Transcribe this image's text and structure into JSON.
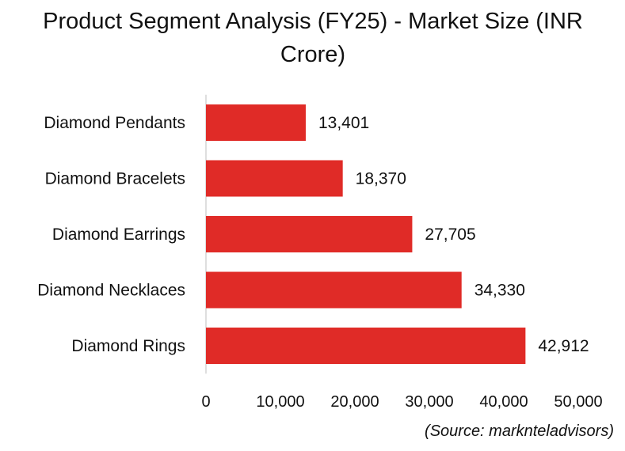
{
  "chart_data": {
    "type": "bar",
    "orientation": "horizontal",
    "title": "Product Segment Analysis (FY25) - Market Size (INR Crore)",
    "categories": [
      "Diamond Pendants",
      "Diamond Bracelets",
      "Diamond Earrings",
      "Diamond Necklaces",
      "Diamond Rings"
    ],
    "values": [
      13401,
      18370,
      27705,
      34330,
      42912
    ],
    "value_labels": [
      "13,401",
      "18,370",
      "27,705",
      "34,330",
      "42,912"
    ],
    "xlim": [
      0,
      50000
    ],
    "xticks": [
      0,
      10000,
      20000,
      30000,
      40000,
      50000
    ],
    "xtick_labels": [
      "0",
      "10,000",
      "20,000",
      "30,000",
      "40,000",
      "50,000"
    ],
    "bar_color": "#E02B27",
    "grid": false,
    "legend": "none"
  },
  "source_note": "(Source: marknteladvisors)"
}
